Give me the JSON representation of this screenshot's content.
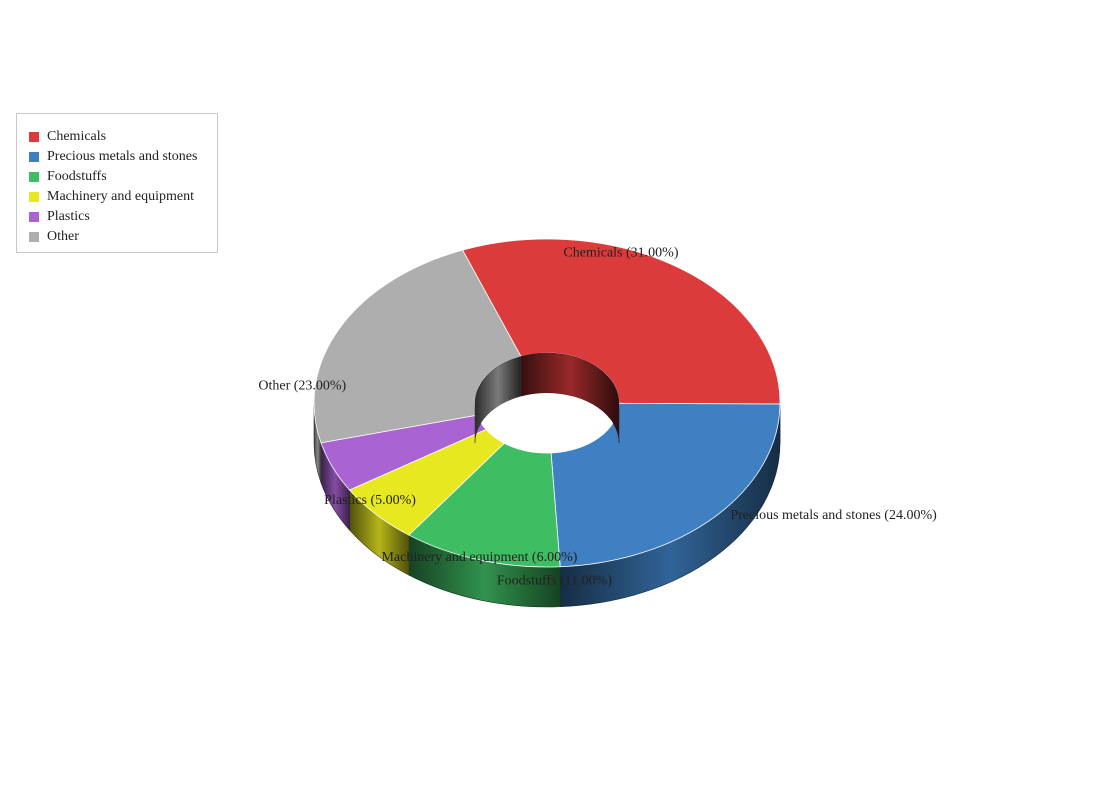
{
  "chart_data": {
    "type": "pie",
    "style": "3d-donut",
    "legend_position": "top-left",
    "slices": [
      {
        "label": "Chemicals",
        "value": 31.0,
        "display": "Chemicals (31.00%)",
        "color": "#db3b3b"
      },
      {
        "label": "Precious metals and stones",
        "value": 24.0,
        "display": "Precious metals and stones (24.00%)",
        "color": "#3f80c3"
      },
      {
        "label": "Foodstuffs",
        "value": 11.0,
        "display": "Foodstuffs (11.00%)",
        "color": "#3fbd63"
      },
      {
        "label": "Machinery and equipment",
        "value": 6.0,
        "display": "Machinery and equipment (6.00%)",
        "color": "#e8e820"
      },
      {
        "label": "Plastics",
        "value": 5.0,
        "display": "Plastics (5.00%)",
        "color": "#a963d3"
      },
      {
        "label": "Other",
        "value": 23.0,
        "display": "Other (23.00%)",
        "color": "#aeaeae"
      }
    ]
  }
}
